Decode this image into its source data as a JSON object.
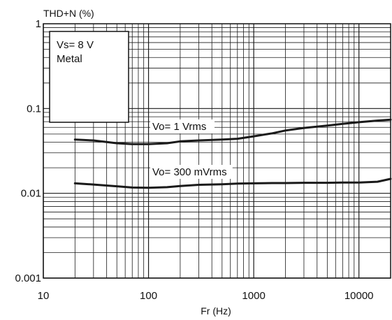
{
  "chart_data": {
    "type": "line",
    "title": "",
    "ylabel": "THD+N (%)",
    "xlabel": "Fr (Hz)",
    "xscale": "log",
    "yscale": "log",
    "xlim": [
      10,
      20000
    ],
    "ylim": [
      0.001,
      1
    ],
    "x_ticks": [
      {
        "value": 10,
        "label": "10"
      },
      {
        "value": 100,
        "label": "100"
      },
      {
        "value": 1000,
        "label": "1000"
      },
      {
        "value": 10000,
        "label": "10000"
      }
    ],
    "y_ticks": [
      {
        "value": 1,
        "label": "1"
      },
      {
        "value": 0.1,
        "label": "0.1"
      },
      {
        "value": 0.01,
        "label": "0.01"
      },
      {
        "value": 0.001,
        "label": "0.001"
      }
    ],
    "grid": true,
    "conditions_box": {
      "lines": [
        "Vs= 8 V",
        "Metal"
      ],
      "placement": "top-left"
    },
    "series": [
      {
        "name": "Vo= 1 Vrms",
        "x": [
          20,
          30,
          50,
          70,
          100,
          150,
          200,
          300,
          500,
          700,
          1000,
          1500,
          2000,
          3000,
          5000,
          7000,
          10000,
          15000,
          20000
        ],
        "y": [
          0.043,
          0.042,
          0.039,
          0.038,
          0.038,
          0.039,
          0.041,
          0.042,
          0.043,
          0.044,
          0.047,
          0.051,
          0.055,
          0.059,
          0.063,
          0.066,
          0.069,
          0.072,
          0.074
        ]
      },
      {
        "name": "Vo= 300 mVrms",
        "x": [
          20,
          30,
          50,
          70,
          100,
          150,
          200,
          300,
          500,
          700,
          1000,
          1500,
          2000,
          3000,
          5000,
          7000,
          10000,
          15000,
          20000
        ],
        "y": [
          0.0131,
          0.0127,
          0.0121,
          0.0117,
          0.0116,
          0.0118,
          0.0122,
          0.0126,
          0.0128,
          0.013,
          0.0131,
          0.0132,
          0.0132,
          0.0133,
          0.0133,
          0.0134,
          0.0134,
          0.0137,
          0.0148
        ]
      }
    ],
    "line_color": "#1a1a1a"
  }
}
